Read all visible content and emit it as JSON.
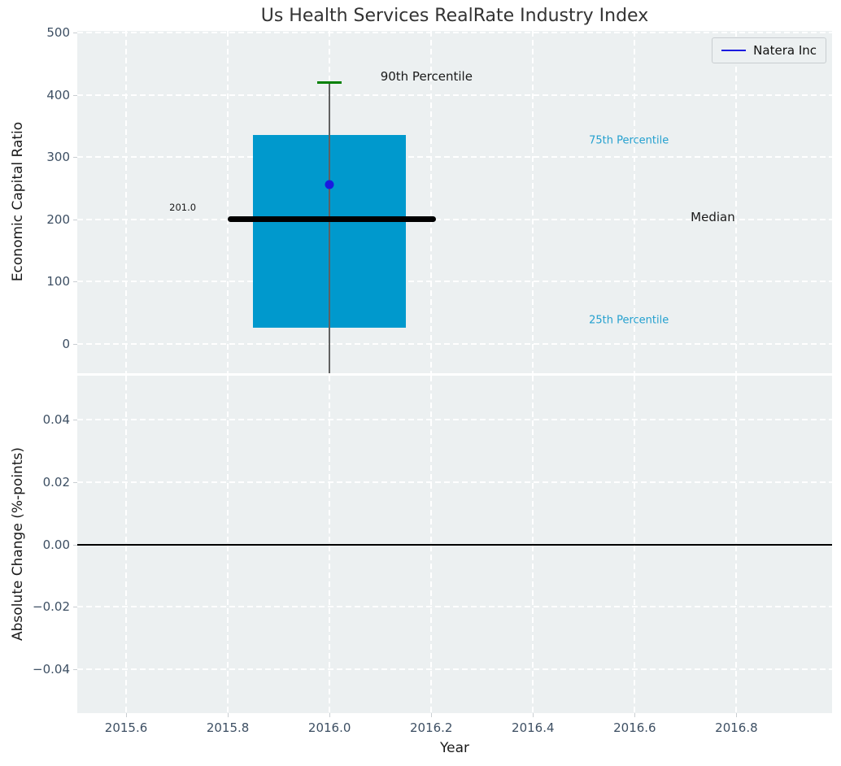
{
  "figure": {
    "title": "Us Health Services RealRate Industry Index"
  },
  "colors": {
    "plot_bg": "#ecf0f1",
    "grid": "#ffffff",
    "title": "#333333",
    "tick_label": "#3d4f63",
    "box_fill": "#0099cd",
    "percentile_label": "#24a0cf",
    "p90_cap": "#008000",
    "whisker": "#606060",
    "median_line": "#000000",
    "company_point": "#1a1ae0",
    "zero_line": "#000000"
  },
  "chart_data": [
    {
      "type": "box",
      "title": "",
      "ylabel": "Economic Capital Ratio",
      "ylim": [
        -47,
        503
      ],
      "xlim": [
        2015.504,
        2016.988
      ],
      "grid": true,
      "yticks": {
        "values": [
          0,
          100,
          200,
          300,
          400,
          500
        ],
        "labels": [
          "0",
          "100",
          "200",
          "300",
          "400",
          "500"
        ]
      },
      "xticks": {
        "values": [
          2015.6,
          2015.8,
          2016.0,
          2016.2,
          2016.4,
          2016.6,
          2016.8
        ],
        "labels": [
          "2015.6",
          "2015.8",
          "2016.0",
          "2016.2",
          "2016.4",
          "2016.6",
          "2016.8"
        ]
      },
      "legend": {
        "position": "upper right",
        "entries": [
          {
            "label": "Natera Inc",
            "color": "#1a1ae0"
          }
        ]
      },
      "box": {
        "x_center": 2016.0,
        "box_x": [
          2015.85,
          2016.15
        ],
        "q1": 26,
        "q3": 336,
        "median": 201.0,
        "median_label": "201.0",
        "median_line_x": [
          2015.8,
          2016.21
        ],
        "p90": 420,
        "p90_cap_x": [
          2015.976,
          2016.024
        ],
        "whisker_x": 2016.0,
        "whisker_bottom_clipped_below_axis": true
      },
      "series": [
        {
          "name": "Natera Inc",
          "type": "scatter",
          "x": [
            2016.0
          ],
          "y": [
            256
          ]
        }
      ],
      "annotations": [
        {
          "label": "90th Percentile",
          "x": 2016.1,
          "y": 430,
          "size": 15,
          "color": "#1a1a1a"
        },
        {
          "label": "75th Percentile",
          "x": 2016.51,
          "y": 326,
          "size": 13,
          "color": "#24a0cf"
        },
        {
          "label": "Median",
          "x": 2016.71,
          "y": 204,
          "size": 15,
          "color": "#1a1a1a"
        },
        {
          "label": "25th Percentile",
          "x": 2016.51,
          "y": 38,
          "size": 13,
          "color": "#24a0cf"
        },
        {
          "label": "201.0",
          "x": 2015.685,
          "y": 220,
          "size": 11.5,
          "color": "#1a1a1a"
        }
      ]
    },
    {
      "type": "line",
      "title": "",
      "ylabel": "Absolute Change (%-points)",
      "xlabel": "Year",
      "ylim": [
        -0.054,
        0.054
      ],
      "xlim": [
        2015.504,
        2016.988
      ],
      "grid": true,
      "yticks": {
        "values": [
          0.04,
          0.02,
          0,
          -0.02,
          -0.04
        ],
        "labels": [
          "0.04",
          "0.02",
          "0.00",
          "−0.02",
          "−0.04"
        ]
      },
      "xticks": {
        "values": [
          2015.6,
          2015.8,
          2016.0,
          2016.2,
          2016.4,
          2016.6,
          2016.8
        ],
        "labels": [
          "2015.6",
          "2015.8",
          "2016.0",
          "2016.2",
          "2016.4",
          "2016.6",
          "2016.8"
        ]
      },
      "hline": 0.0,
      "series": []
    }
  ]
}
